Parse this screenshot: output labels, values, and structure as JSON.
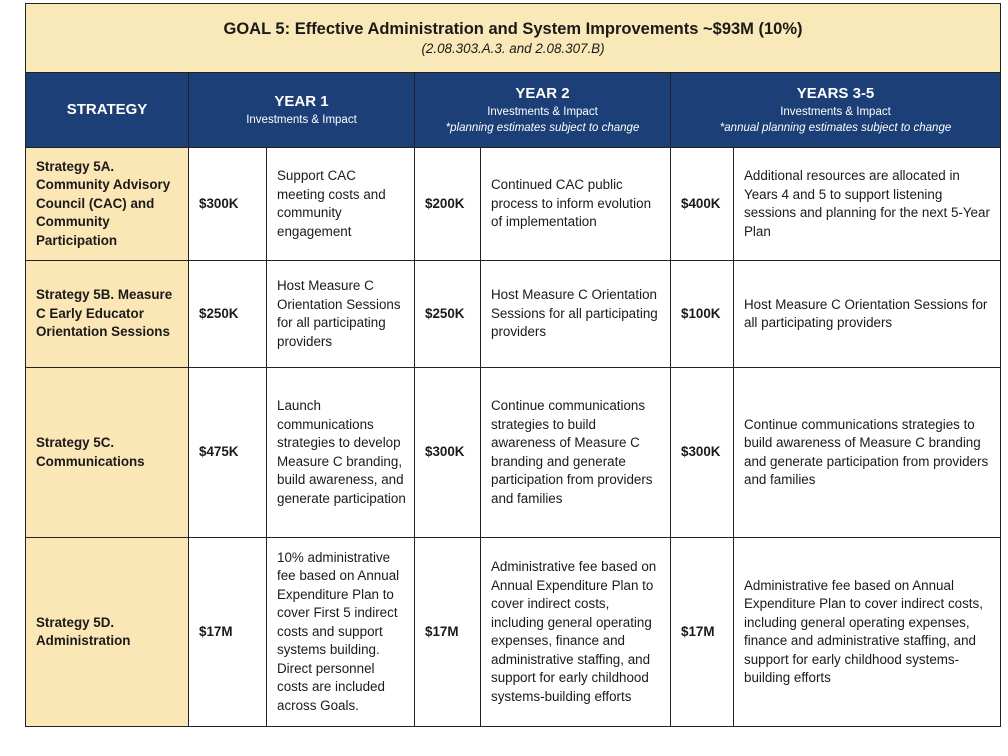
{
  "title": "GOAL 5: Effective Administration and System Improvements ~$93M (10%)",
  "subtitle": "(2.08.303.A.3. and 2.08.307.B)",
  "headers": {
    "strategy": "STRATEGY",
    "year1": {
      "title": "YEAR 1",
      "sub": "Investments & Impact",
      "note": ""
    },
    "year2": {
      "title": "YEAR 2",
      "sub": "Investments & Impact",
      "note": "*planning estimates subject to change"
    },
    "years35": {
      "title": "YEARS 3-5",
      "sub": "Investments & Impact",
      "note": "*annual planning estimates subject to change"
    }
  },
  "colors": {
    "title_bg": "#f9e8b8",
    "header_bg": "#1c3f78",
    "strategy_bg": "#fbe7b5"
  },
  "rows": [
    {
      "strategy": "Strategy 5A. Community Advisory Council (CAC) and Community Participation",
      "y1_amount": "$300K",
      "y1_text": "Support CAC meeting costs and community engagement",
      "y2_amount": "$200K",
      "y2_text": "Continued CAC public process to inform evolution of implementation",
      "y35_amount": "$400K",
      "y35_text": "Additional resources are allocated in Years 4 and 5 to support listening sessions and planning for the next 5-Year Plan"
    },
    {
      "strategy": "Strategy 5B. Measure C Early Educator Orientation Sessions",
      "y1_amount": "$250K",
      "y1_text": "Host Measure C Orientation Sessions for all participating providers",
      "y2_amount": "$250K",
      "y2_text": "Host Measure C Orientation Sessions for all participating providers",
      "y35_amount": "$100K",
      "y35_text": "Host Measure C Orientation Sessions for all participating providers"
    },
    {
      "strategy": "Strategy 5C. Communications",
      "y1_amount": "$475K",
      "y1_text": "Launch communications strategies to develop Measure C branding, build awareness, and generate participation",
      "y2_amount": "$300K",
      "y2_text": "Continue communications strategies to build awareness of Measure C branding and generate participation from providers and families",
      "y35_amount": "$300K",
      "y35_text": "Continue communications strategies to build awareness of Measure C branding and generate participation from providers and families"
    },
    {
      "strategy": "Strategy 5D. Administration",
      "y1_amount": "$17M",
      "y1_text": "10% administrative fee based on Annual Expenditure Plan to cover First 5 indirect costs and support systems building. Direct personnel costs are included across Goals.",
      "y2_amount": "$17M",
      "y2_text": "Administrative fee based on Annual Expenditure Plan to cover indirect costs, including general operating expenses, finance and administrative staffing, and support for early childhood systems-building efforts",
      "y35_amount": "$17M",
      "y35_text": "Administrative fee based on Annual Expenditure Plan to cover indirect costs, including general operating expenses, finance and administrative staffing, and support for early childhood systems-building efforts"
    }
  ]
}
